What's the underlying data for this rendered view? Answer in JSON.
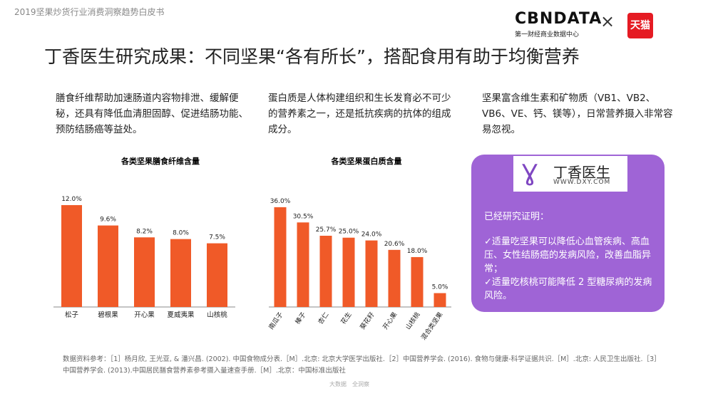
{
  "header": {
    "report_title": "2019坚果炒货行业消费洞察趋势白皮书",
    "brand": "CBNDATA",
    "brand_sub": "第一财经商业数据中心",
    "times": "×",
    "partner": "天猫"
  },
  "headline": "丁香医生研究成果：不同坚果“各有所长”，搭配食用有助于均衡营养",
  "paragraphs": [
    "膳食纤维帮助加速肠道内容物排泄、缓解便秘，还具有降低血清胆固醇、促进结肠功能、预防结肠癌等益处。",
    "蛋白质是人体构建组织和生长发育必不可少的营养素之一，还是抵抗疾病的抗体的组成成分。",
    "坚果富含维生素和矿物质（VB1、VB2、VB6、VE、钙、镁等），日常营养摄入非常容易忽视。"
  ],
  "chart_data": [
    {
      "type": "bar",
      "title": "各类坚果膳食纤维含量",
      "categories": [
        "松子",
        "碧根果",
        "开心果",
        "夏威夷果",
        "山核桃"
      ],
      "values": [
        12.0,
        9.6,
        8.2,
        8.0,
        7.5
      ],
      "labels": [
        "12.0%",
        "9.6%",
        "8.2%",
        "8.0%",
        "7.5%"
      ],
      "unit": "%",
      "ylim": [
        0,
        12.5
      ],
      "grid": false
    },
    {
      "type": "bar",
      "title": "各类坚果蛋白质含量",
      "categories": [
        "南瓜子",
        "榛子",
        "杏仁",
        "花生",
        "葵花籽",
        "开心果",
        "山核桃",
        "混合类坚果"
      ],
      "values": [
        36.0,
        30.5,
        25.7,
        25.0,
        24.0,
        20.6,
        18.0,
        5.0
      ],
      "labels": [
        "36.0%",
        "30.5%",
        "25.7%",
        "25.0%",
        "24.0%",
        "20.6%",
        "18.0%",
        "5.0%"
      ],
      "unit": "%",
      "ylim": [
        0,
        37
      ],
      "grid": false
    }
  ],
  "card": {
    "logo_mark": "Ɣ",
    "logo_name": "丁香医生",
    "logo_url": "WWW.DXY.COM",
    "heading": "已经研究证明：",
    "body": "✓适量吃坚果可以降低心血管疾病、高血压、女性结肠癌的发病风险，改善血脂异常；\n✓适量吃核桃可能降低 2 型糖尿病的发病风险。"
  },
  "source": "数据资料参考：［1］杨月欣, 王光亚, & 潘兴昌. (2002). 中国食物成分表.［M］.北京: 北京大学医学出版社.［2］中国营养学会. (2016). 食物与健康-科学证据共识.［M］.北京: 人民卫生出版社.［3］中国营养学会. (2013).中国居民膳食营养素参考摄入量速查手册.［M］.北京：中国标准出版社",
  "footer": "大数据　全洞察",
  "colors": {
    "bar": "#f05a28",
    "card": "#9f64d6",
    "axis": "#888888"
  }
}
